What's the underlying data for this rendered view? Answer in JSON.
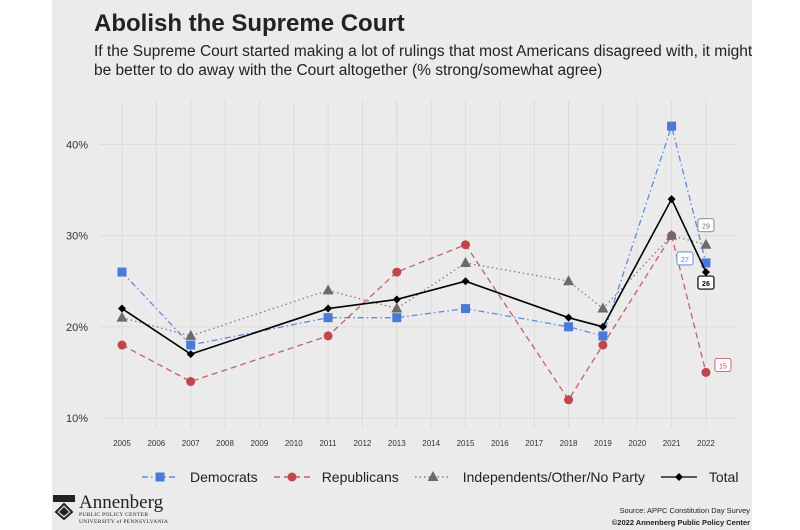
{
  "title": "Abolish the Supreme Court",
  "subtitle": "If the Supreme Court started making a lot of rulings that most Americans disagreed with, it might be better to do away with the Court altogether (% strong/somewhat agree)",
  "footer": {
    "logo_name": "Annenberg",
    "logo_line1": "PUBLIC POLICY CENTER",
    "logo_line2": "UNIVERSITY of PENNSYLVANIA",
    "source": "Source: APPC Constitution Day Survey",
    "copyright": "©2022 Annenberg Public Policy Center"
  },
  "chart_data": {
    "type": "line",
    "x_ticks": [
      "2005",
      "2006",
      "2007",
      "2008",
      "2009",
      "2010",
      "2011",
      "2012",
      "2013",
      "2014",
      "2015",
      "2016",
      "2017",
      "2018",
      "2019",
      "2020",
      "2021",
      "2022"
    ],
    "y_ticks": [
      "10%",
      "20%",
      "30%",
      "40%"
    ],
    "ylim": [
      10,
      42
    ],
    "grid": true,
    "legend_position": "bottom",
    "series": [
      {
        "name": "Democrats",
        "color": "#4a7ad8",
        "marker": "square",
        "line": "dashdot",
        "x": [
          2005,
          2007,
          2011,
          2013,
          2015,
          2018,
          2019,
          2021,
          2022
        ],
        "values": [
          26,
          18,
          21,
          21,
          22,
          20,
          19,
          42,
          27
        ],
        "end_label": "27"
      },
      {
        "name": "Republicans",
        "color": "#c0464c",
        "marker": "circle",
        "line": "dashed",
        "x": [
          2005,
          2007,
          2011,
          2013,
          2015,
          2018,
          2019,
          2021,
          2022
        ],
        "values": [
          18,
          14,
          19,
          26,
          29,
          12,
          18,
          30,
          15
        ],
        "end_label": "15"
      },
      {
        "name": "Independents/Other/No Party",
        "color": "#6b6b6b",
        "marker": "triangle",
        "line": "dotted",
        "x": [
          2005,
          2007,
          2011,
          2013,
          2015,
          2018,
          2019,
          2021,
          2022
        ],
        "values": [
          21,
          19,
          24,
          22,
          27,
          25,
          22,
          30,
          29
        ],
        "end_label": "29"
      },
      {
        "name": "Total",
        "color": "#000000",
        "marker": "diamond",
        "line": "solid",
        "x": [
          2005,
          2007,
          2011,
          2013,
          2015,
          2018,
          2019,
          2021,
          2022
        ],
        "values": [
          22,
          17,
          22,
          23,
          25,
          21,
          20,
          34,
          26
        ],
        "end_label": "26"
      }
    ]
  }
}
